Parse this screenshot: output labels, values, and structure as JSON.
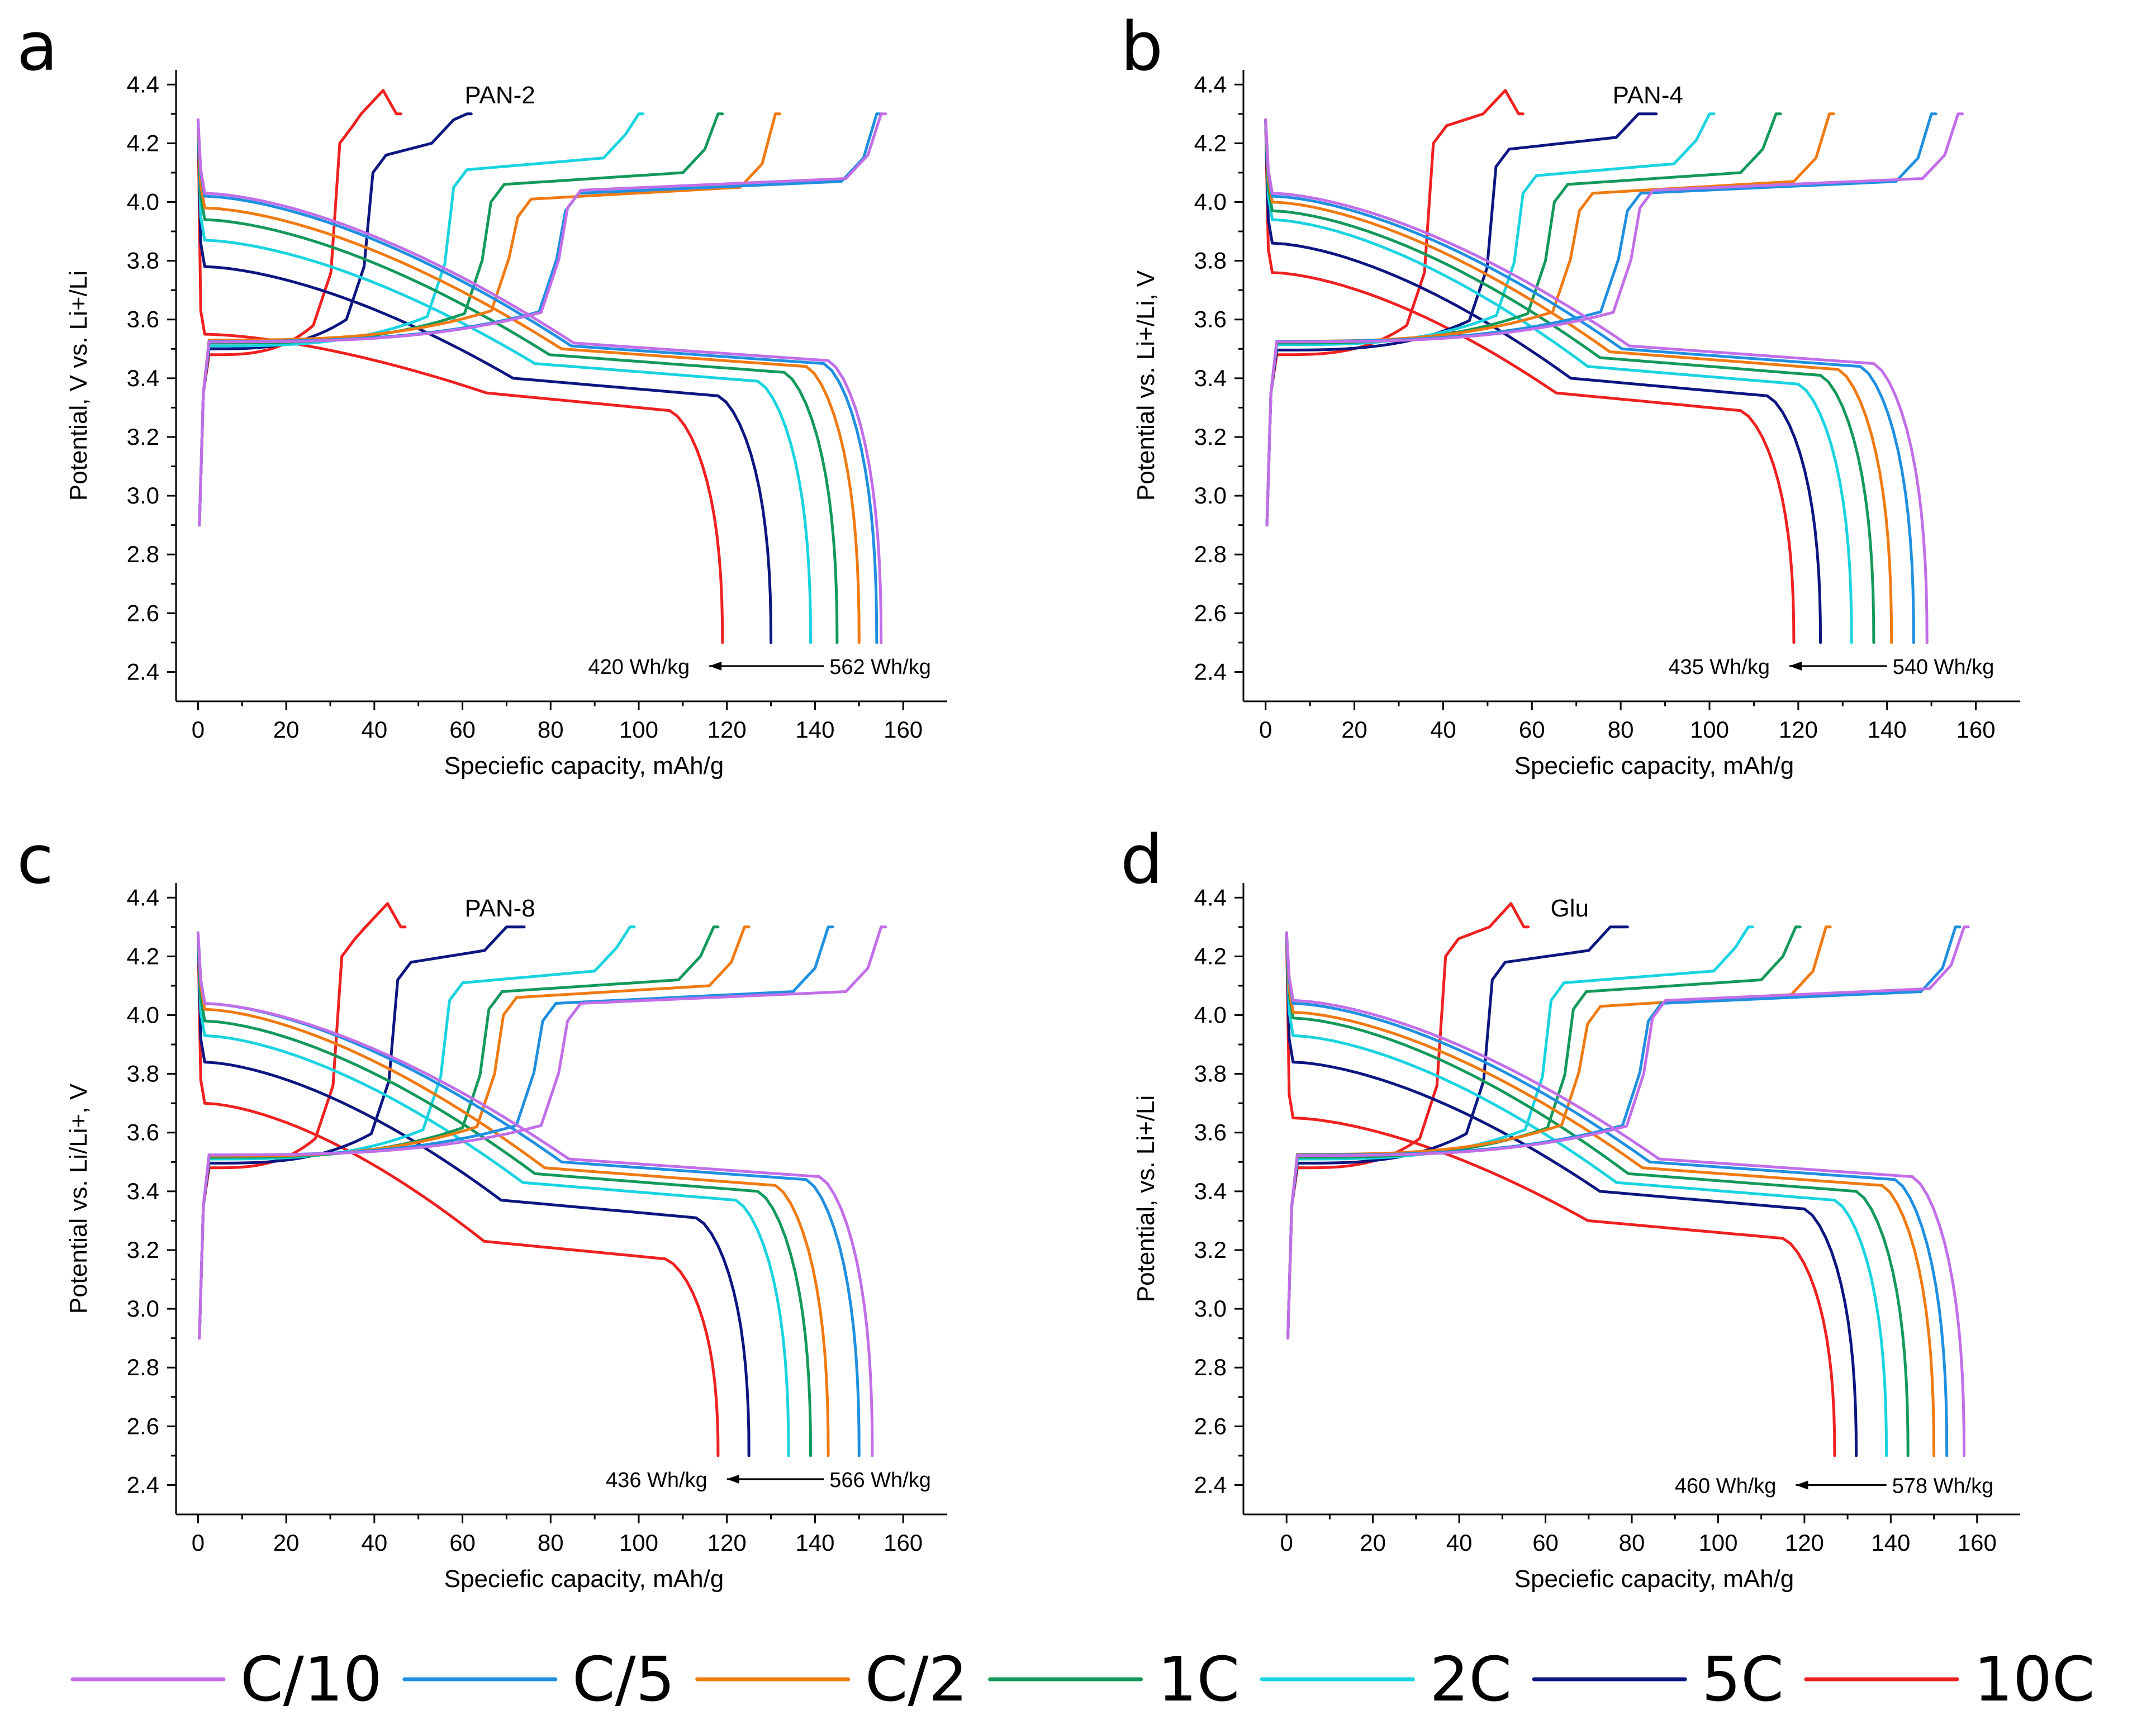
{
  "figure": {
    "background": "#ffffff"
  },
  "legend": [
    {
      "label": "C/10",
      "color": "#c26ee8"
    },
    {
      "label": "C/5",
      "color": "#1f8fe0"
    },
    {
      "label": "C/2",
      "color": "#f07a12"
    },
    {
      "label": "1C",
      "color": "#13995a"
    },
    {
      "label": "2C",
      "color": "#1ad3e0"
    },
    {
      "label": "5C",
      "color": "#0d1580"
    },
    {
      "label": "10C",
      "color": "#ef2020"
    }
  ],
  "chart_data": [
    {
      "type": "line",
      "panel": "a",
      "title": "PAN-2",
      "xlabel": "Speciefic capacity, mAh/g",
      "ylabel": "Potential, V vs. Li+/Li",
      "xlim": [
        -5,
        170
      ],
      "ylim": [
        2.3,
        4.45
      ],
      "xticks": [
        "0",
        "20",
        "40",
        "60",
        "80",
        "100",
        "120",
        "140",
        "160"
      ],
      "yticks": [
        "2.4",
        "2.6",
        "2.8",
        "3.0",
        "3.2",
        "3.4",
        "3.6",
        "3.8",
        "4.0",
        "4.2",
        "4.4"
      ],
      "annotation": {
        "from_label": "562 Wh/kg",
        "to_label": "420 Wh/kg",
        "from_x": 142,
        "to_x": 116,
        "y": 2.42
      },
      "series": [
        {
          "name": "C/10",
          "charge_v": 4.08,
          "charge_end": 155,
          "discharge_v": 4.03,
          "discharge_plateau": 3.47,
          "discharge_end": 155
        },
        {
          "name": "C/5",
          "charge_v": 4.07,
          "charge_end": 154,
          "discharge_v": 4.02,
          "discharge_plateau": 3.46,
          "discharge_end": 154
        },
        {
          "name": "C/2",
          "charge_v": 4.05,
          "charge_end": 131,
          "discharge_v": 3.98,
          "discharge_plateau": 3.45,
          "discharge_end": 150
        },
        {
          "name": "1C",
          "charge_v": 4.1,
          "charge_end": 118,
          "discharge_v": 3.94,
          "discharge_plateau": 3.43,
          "discharge_end": 145
        },
        {
          "name": "2C",
          "charge_v": 4.15,
          "charge_end": 100,
          "discharge_v": 3.87,
          "discharge_plateau": 3.4,
          "discharge_end": 139
        },
        {
          "name": "5C",
          "charge_v": 4.2,
          "charge_end": 61,
          "discharge_v": 3.78,
          "discharge_plateau": 3.35,
          "discharge_end": 130
        },
        {
          "name": "10C",
          "charge_v": 4.3,
          "charge_end": 45,
          "discharge_v": 3.55,
          "discharge_plateau": 3.3,
          "discharge_end": 119
        }
      ]
    },
    {
      "type": "line",
      "panel": "b",
      "title": "PAN-4",
      "xlabel": "Speciefic capacity, mAh/g",
      "ylabel": "Potential vs. Li+/Li, V",
      "xlim": [
        -5,
        170
      ],
      "ylim": [
        2.3,
        4.45
      ],
      "xticks": [
        "0",
        "20",
        "40",
        "60",
        "80",
        "100",
        "120",
        "140",
        "160"
      ],
      "yticks": [
        "2.4",
        "2.6",
        "2.8",
        "3.0",
        "3.2",
        "3.4",
        "3.6",
        "3.8",
        "4.0",
        "4.2",
        "4.4"
      ],
      "annotation": {
        "from_label": "540 Wh/kg",
        "to_label": "435 Wh/kg",
        "from_x": 140,
        "to_x": 118,
        "y": 2.42
      },
      "series": [
        {
          "name": "C/10",
          "charge_v": 4.08,
          "charge_end": 156,
          "discharge_v": 4.03,
          "discharge_plateau": 3.46,
          "discharge_end": 149
        },
        {
          "name": "C/5",
          "charge_v": 4.07,
          "charge_end": 150,
          "discharge_v": 4.02,
          "discharge_plateau": 3.45,
          "discharge_end": 146
        },
        {
          "name": "C/2",
          "charge_v": 4.07,
          "charge_end": 127,
          "discharge_v": 4.0,
          "discharge_plateau": 3.44,
          "discharge_end": 141
        },
        {
          "name": "1C",
          "charge_v": 4.1,
          "charge_end": 115,
          "discharge_v": 3.97,
          "discharge_plateau": 3.42,
          "discharge_end": 137
        },
        {
          "name": "2C",
          "charge_v": 4.13,
          "charge_end": 100,
          "discharge_v": 3.94,
          "discharge_plateau": 3.39,
          "discharge_end": 132
        },
        {
          "name": "5C",
          "charge_v": 4.22,
          "charge_end": 87,
          "discharge_v": 3.86,
          "discharge_plateau": 3.35,
          "discharge_end": 125
        },
        {
          "name": "10C",
          "charge_v": 4.3,
          "charge_end": 57,
          "discharge_v": 3.76,
          "discharge_plateau": 3.3,
          "discharge_end": 119
        }
      ]
    },
    {
      "type": "line",
      "panel": "c",
      "title": "PAN-8",
      "xlabel": "Speciefic capacity, mAh/g",
      "ylabel": "Potential vs. Li/Li+, V",
      "xlim": [
        -5,
        170
      ],
      "ylim": [
        2.3,
        4.45
      ],
      "xticks": [
        "0",
        "20",
        "40",
        "60",
        "80",
        "100",
        "120",
        "140",
        "160"
      ],
      "yticks": [
        "2.4",
        "2.6",
        "2.8",
        "3.0",
        "3.2",
        "3.4",
        "3.6",
        "3.8",
        "4.0",
        "4.2",
        "4.4"
      ],
      "annotation": {
        "from_label": "566 Wh/kg",
        "to_label": "436 Wh/kg",
        "from_x": 142,
        "to_x": 120,
        "y": 2.42
      },
      "series": [
        {
          "name": "C/10",
          "charge_v": 4.08,
          "charge_end": 155,
          "discharge_v": 4.04,
          "discharge_plateau": 3.46,
          "discharge_end": 153
        },
        {
          "name": "C/5",
          "charge_v": 4.08,
          "charge_end": 143,
          "discharge_v": 4.04,
          "discharge_plateau": 3.45,
          "discharge_end": 150
        },
        {
          "name": "C/2",
          "charge_v": 4.1,
          "charge_end": 124,
          "discharge_v": 4.02,
          "discharge_plateau": 3.43,
          "discharge_end": 143
        },
        {
          "name": "1C",
          "charge_v": 4.12,
          "charge_end": 117,
          "discharge_v": 3.98,
          "discharge_plateau": 3.41,
          "discharge_end": 139
        },
        {
          "name": "2C",
          "charge_v": 4.15,
          "charge_end": 98,
          "discharge_v": 3.93,
          "discharge_plateau": 3.38,
          "discharge_end": 134
        },
        {
          "name": "5C",
          "charge_v": 4.22,
          "charge_end": 73,
          "discharge_v": 3.84,
          "discharge_plateau": 3.32,
          "discharge_end": 125
        },
        {
          "name": "10C",
          "charge_v": 4.3,
          "charge_end": 46,
          "discharge_v": 3.7,
          "discharge_plateau": 3.18,
          "discharge_end": 118
        }
      ]
    },
    {
      "type": "line",
      "panel": "d",
      "title": "Glu",
      "xlabel": "Speciefic capacity, mAh/g",
      "ylabel": "Potential, vs. Li+/Li",
      "xlim": [
        -10,
        170
      ],
      "ylim": [
        2.3,
        4.45
      ],
      "xticks": [
        "0",
        "20",
        "40",
        "60",
        "80",
        "100",
        "120",
        "140",
        "160"
      ],
      "yticks": [
        "2.4",
        "2.6",
        "2.8",
        "3.0",
        "3.2",
        "3.4",
        "3.6",
        "3.8",
        "4.0",
        "4.2",
        "4.4"
      ],
      "annotation": {
        "from_label": "578 Wh/kg",
        "to_label": "460 Wh/kg",
        "from_x": 139,
        "to_x": 118,
        "y": 2.4
      },
      "series": [
        {
          "name": "C/10",
          "charge_v": 4.09,
          "charge_end": 157,
          "discharge_v": 4.05,
          "discharge_plateau": 3.46,
          "discharge_end": 157
        },
        {
          "name": "C/5",
          "charge_v": 4.08,
          "charge_end": 155,
          "discharge_v": 4.04,
          "discharge_plateau": 3.45,
          "discharge_end": 153
        },
        {
          "name": "C/2",
          "charge_v": 4.07,
          "charge_end": 125,
          "discharge_v": 4.01,
          "discharge_plateau": 3.43,
          "discharge_end": 150
        },
        {
          "name": "1C",
          "charge_v": 4.12,
          "charge_end": 118,
          "discharge_v": 3.99,
          "discharge_plateau": 3.41,
          "discharge_end": 144
        },
        {
          "name": "2C",
          "charge_v": 4.15,
          "charge_end": 107,
          "discharge_v": 3.93,
          "discharge_plateau": 3.38,
          "discharge_end": 139
        },
        {
          "name": "5C",
          "charge_v": 4.22,
          "charge_end": 78,
          "discharge_v": 3.84,
          "discharge_plateau": 3.35,
          "discharge_end": 132
        },
        {
          "name": "10C",
          "charge_v": 4.3,
          "charge_end": 55,
          "discharge_v": 3.65,
          "discharge_plateau": 3.25,
          "discharge_end": 127
        }
      ]
    }
  ]
}
